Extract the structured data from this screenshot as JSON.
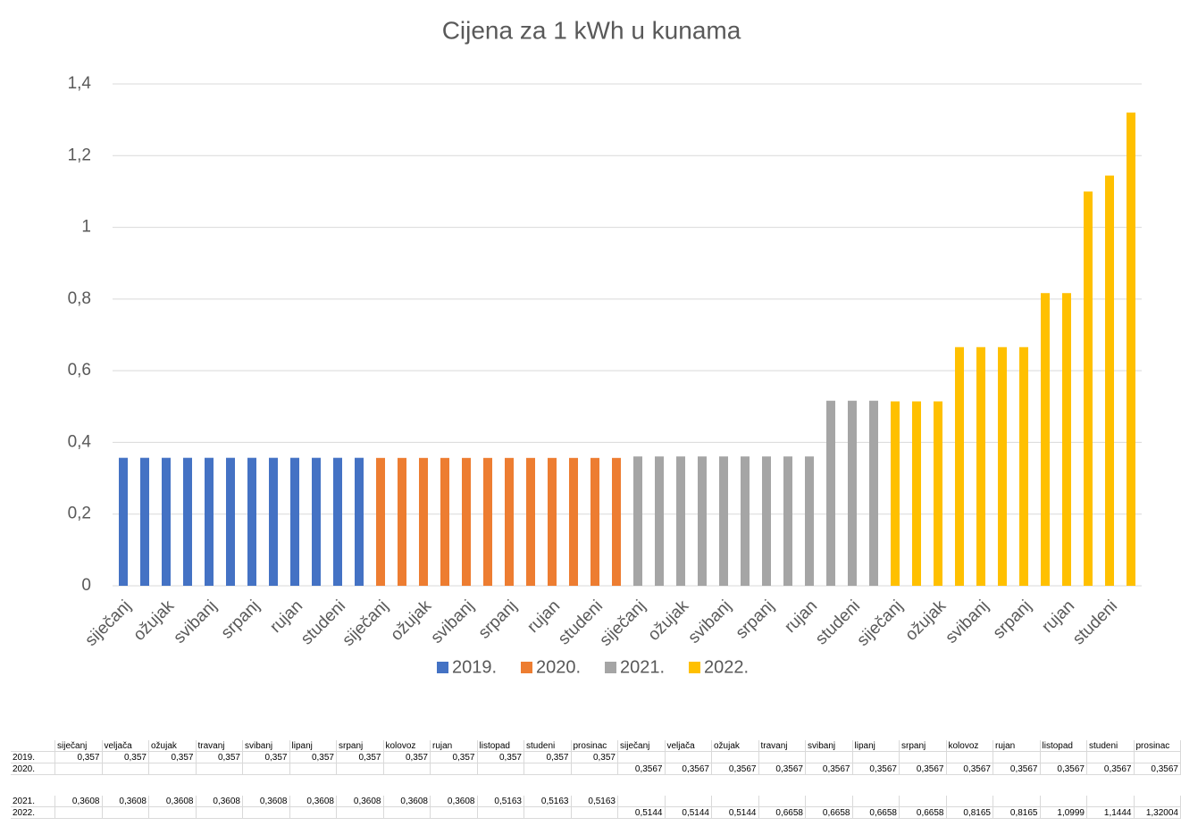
{
  "chart_data": {
    "type": "bar",
    "title": "Cijena za 1 kWh u kunama",
    "categories": [
      "siječanj",
      null,
      "ožujak",
      null,
      "svibanj",
      null,
      "srpanj",
      null,
      "rujan",
      null,
      "studeni",
      null,
      "siječanj",
      null,
      "ožujak",
      null,
      "svibanj",
      null,
      "srpanj",
      null,
      "rujan",
      null,
      "studeni",
      null,
      "siječanj",
      null,
      "ožujak",
      null,
      "svibanj",
      null,
      "srpanj",
      null,
      "rujan",
      null,
      "studeni",
      null,
      "siječanj",
      null,
      "ožujak",
      null,
      "svibanj",
      null,
      "srpanj",
      null,
      "rujan",
      null,
      "studeni",
      null
    ],
    "series": [
      {
        "name": "2019.",
        "color": "#4472c4",
        "values": [
          0.357,
          0.357,
          0.357,
          0.357,
          0.357,
          0.357,
          0.357,
          0.357,
          0.357,
          0.357,
          0.357,
          0.357,
          null,
          null,
          null,
          null,
          null,
          null,
          null,
          null,
          null,
          null,
          null,
          null,
          null,
          null,
          null,
          null,
          null,
          null,
          null,
          null,
          null,
          null,
          null,
          null,
          null,
          null,
          null,
          null,
          null,
          null,
          null,
          null,
          null,
          null,
          null,
          null
        ]
      },
      {
        "name": "2020.",
        "color": "#ed7d31",
        "values": [
          null,
          null,
          null,
          null,
          null,
          null,
          null,
          null,
          null,
          null,
          null,
          null,
          0.3567,
          0.3567,
          0.3567,
          0.3567,
          0.3567,
          0.3567,
          0.3567,
          0.3567,
          0.3567,
          0.3567,
          0.3567,
          0.3567,
          null,
          null,
          null,
          null,
          null,
          null,
          null,
          null,
          null,
          null,
          null,
          null,
          null,
          null,
          null,
          null,
          null,
          null,
          null,
          null,
          null,
          null,
          null,
          null
        ]
      },
      {
        "name": "2021.",
        "color": "#a5a5a5",
        "values": [
          null,
          null,
          null,
          null,
          null,
          null,
          null,
          null,
          null,
          null,
          null,
          null,
          null,
          null,
          null,
          null,
          null,
          null,
          null,
          null,
          null,
          null,
          null,
          null,
          0.3608,
          0.3608,
          0.3608,
          0.3608,
          0.3608,
          0.3608,
          0.3608,
          0.3608,
          0.3608,
          0.5163,
          0.5163,
          0.5163,
          null,
          null,
          null,
          null,
          null,
          null,
          null,
          null,
          null,
          null,
          null,
          null
        ]
      },
      {
        "name": "2022.",
        "color": "#ffc000",
        "values": [
          null,
          null,
          null,
          null,
          null,
          null,
          null,
          null,
          null,
          null,
          null,
          null,
          null,
          null,
          null,
          null,
          null,
          null,
          null,
          null,
          null,
          null,
          null,
          null,
          null,
          null,
          null,
          null,
          null,
          null,
          null,
          null,
          null,
          null,
          null,
          null,
          0.5144,
          0.5144,
          0.5144,
          0.6658,
          0.6658,
          0.6658,
          0.6658,
          0.8165,
          0.8165,
          1.0999,
          1.1444,
          1.32004
        ]
      }
    ],
    "ylim": [
      0,
      1.4
    ],
    "yticks": [
      0,
      {
        "value": 0.2,
        "label": "0,2"
      },
      {
        "value": 0.4,
        "label": "0,4"
      },
      {
        "value": 0.6,
        "label": "0,6"
      },
      {
        "value": 0.8,
        "label": "0,8"
      },
      1,
      {
        "value": 1.2,
        "label": "1,2"
      },
      {
        "value": 1.4,
        "label": "1,4"
      }
    ],
    "grid": true,
    "legend": "bottom"
  },
  "table": {
    "header": [
      "siječanj",
      "veljača",
      "ožujak",
      "travanj",
      "svibanj",
      "lipanj",
      "srpanj",
      "kolovoz",
      "rujan",
      "listopad",
      "studeni",
      "prosinac",
      "siječanj",
      "veljača",
      "ožujak",
      "travanj",
      "svibanj",
      "lipanj",
      "srpanj",
      "kolovoz",
      "rujan",
      "listopad",
      "studeni",
      "prosinac"
    ],
    "rows": [
      {
        "label": "2019.",
        "cells": [
          "0,357",
          "0,357",
          "0,357",
          "0,357",
          "0,357",
          "0,357",
          "0,357",
          "0,357",
          "0,357",
          "0,357",
          "0,357",
          "0,357",
          null,
          null,
          null,
          null,
          null,
          null,
          null,
          null,
          null,
          null,
          null,
          null
        ]
      },
      {
        "label": "2020.",
        "cells": [
          null,
          null,
          null,
          null,
          null,
          null,
          null,
          null,
          null,
          null,
          null,
          null,
          "0,3567",
          "0,3567",
          "0,3567",
          "0,3567",
          "0,3567",
          "0,3567",
          "0,3567",
          "0,3567",
          "0,3567",
          "0,3567",
          "0,3567",
          "0,3567"
        ]
      },
      {
        "label": "2021.",
        "cells": [
          "0,3608",
          "0,3608",
          "0,3608",
          "0,3608",
          "0,3608",
          "0,3608",
          "0,3608",
          "0,3608",
          "0,3608",
          "0,5163",
          "0,5163",
          "0,5163",
          null,
          null,
          null,
          null,
          null,
          null,
          null,
          null,
          null,
          null,
          null,
          null
        ]
      },
      {
        "label": "2022.",
        "cells": [
          null,
          null,
          null,
          null,
          null,
          null,
          null,
          null,
          null,
          null,
          null,
          null,
          "0,5144",
          "0,5144",
          "0,5144",
          "0,6658",
          "0,6658",
          "0,6658",
          "0,6658",
          "0,8165",
          "0,8165",
          "1,0999",
          "1,1444",
          "1,32004"
        ]
      }
    ]
  }
}
